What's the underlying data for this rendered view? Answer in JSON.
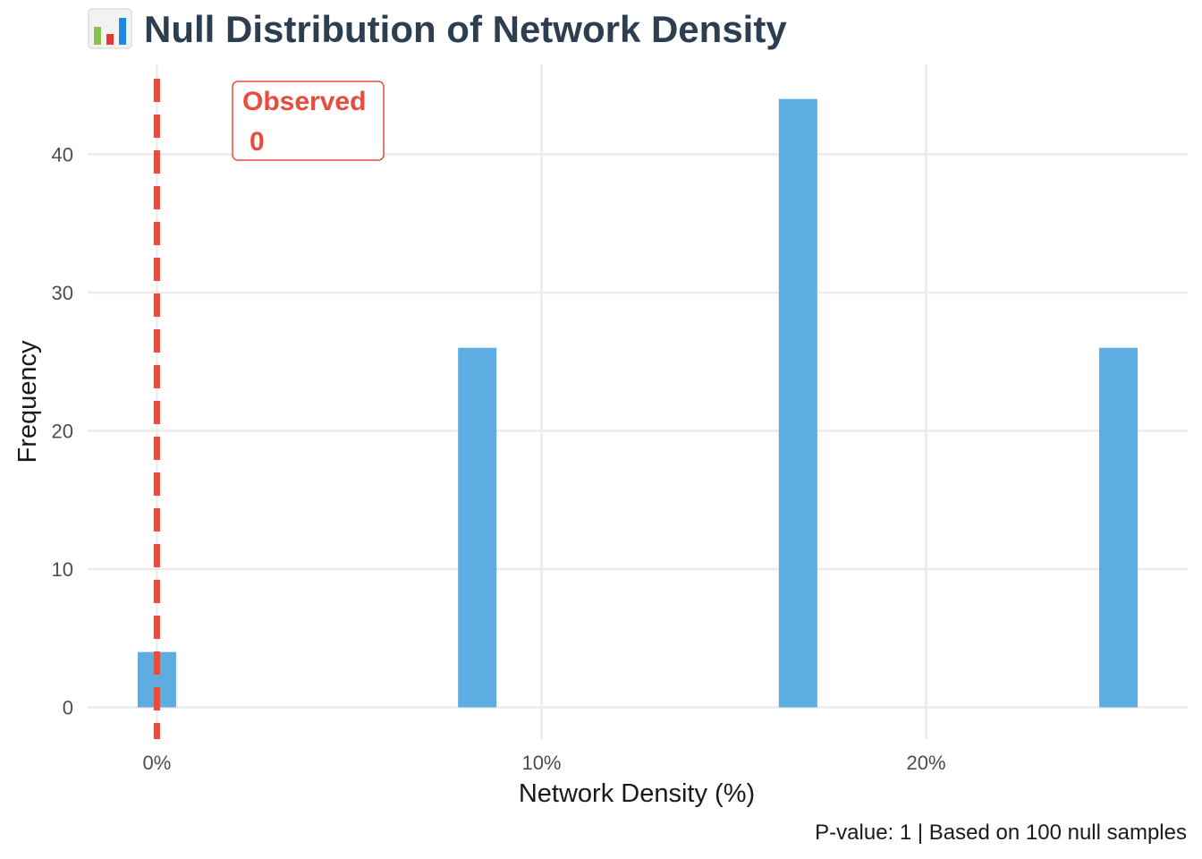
{
  "chart_data": {
    "type": "bar",
    "title": "Null Distribution of Network Density",
    "title_icon": "bar-chart-emoji-icon",
    "xlabel": "Network Density (%)",
    "ylabel": "Frequency",
    "caption": "P-value: 1 | Based on 100 null samples",
    "x_ticks": [
      {
        "value": 0,
        "label": "0%"
      },
      {
        "value": 10,
        "label": "10%"
      },
      {
        "value": 20,
        "label": "20%"
      }
    ],
    "y_ticks": [
      {
        "value": 0,
        "label": "0"
      },
      {
        "value": 10,
        "label": "10"
      },
      {
        "value": 20,
        "label": "20"
      },
      {
        "value": 30,
        "label": "30"
      },
      {
        "value": 40,
        "label": "40"
      }
    ],
    "xlim": [
      -1.8,
      26.8
    ],
    "ylim": [
      -2.3,
      46.5
    ],
    "grid": true,
    "legend": "none",
    "bars": [
      {
        "x": 0,
        "count": 4
      },
      {
        "x": 8.33,
        "count": 26
      },
      {
        "x": 16.67,
        "count": 44
      },
      {
        "x": 25,
        "count": 26
      }
    ],
    "bar_width": 1.0,
    "observed": {
      "value": 0,
      "label_title": "Observed",
      "label_value": "0"
    },
    "colors": {
      "bar": "#5dade2",
      "observed": "#e74c3c",
      "title": "#2c3e50",
      "grid": "#ebebeb"
    }
  }
}
